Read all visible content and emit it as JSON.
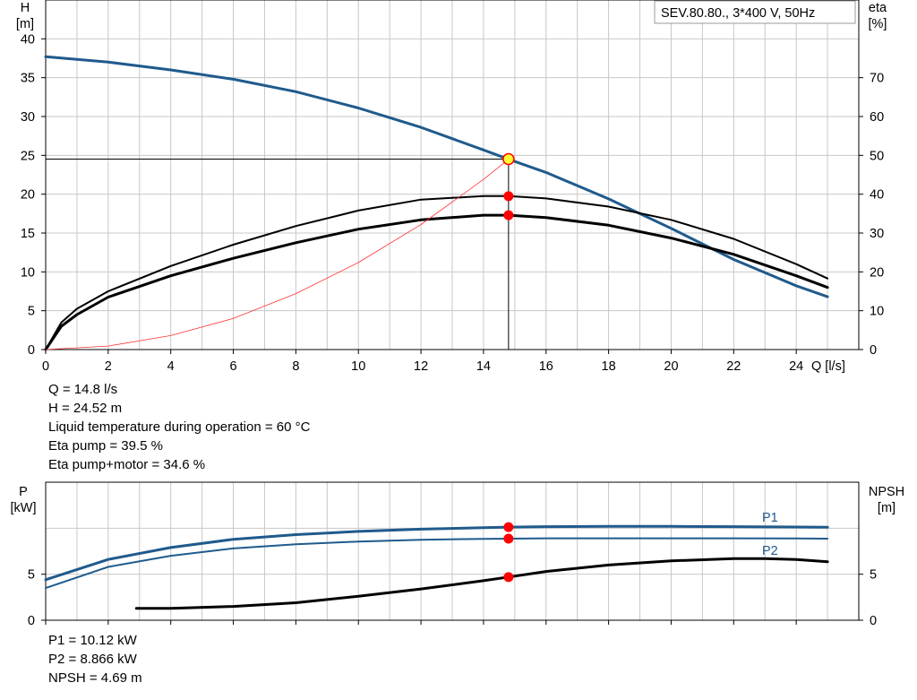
{
  "legend_box": "SEV.80.80., 3*400 V, 50Hz",
  "chart_data": [
    {
      "type": "line",
      "title": "",
      "xlabel": "Q [l/s]",
      "ylabel": "H\n[m]",
      "y2label": "eta\n[%]",
      "xlim": [
        0,
        26
      ],
      "ylim": [
        0,
        45
      ],
      "y2lim": [
        0,
        90
      ],
      "grid": true,
      "x_ticks": [
        0,
        2,
        4,
        6,
        8,
        10,
        12,
        14,
        16,
        18,
        20,
        22,
        24
      ],
      "y_ticks": [
        0,
        5,
        10,
        15,
        20,
        25,
        30,
        35,
        40
      ],
      "y2_ticks": [
        0,
        10,
        20,
        30,
        40,
        50,
        60,
        70
      ],
      "series": [
        {
          "id": "head",
          "color": "#1f5a8c",
          "axis": "left",
          "x": [
            0,
            2,
            4,
            6,
            8,
            10,
            12,
            14,
            14.8,
            16,
            18,
            20,
            22,
            24,
            25
          ],
          "values": [
            37.7,
            37,
            36,
            34.8,
            33.2,
            31.1,
            28.6,
            25.7,
            24.5,
            22.8,
            19.4,
            15.6,
            11.6,
            8.2,
            6.8
          ]
        },
        {
          "id": "eta-pump",
          "color": "#000000",
          "axis": "right",
          "x": [
            0,
            0.5,
            1,
            2,
            4,
            6,
            8,
            10,
            12,
            14,
            14.8,
            16,
            18,
            20,
            22,
            24,
            25
          ],
          "values": [
            0,
            7,
            10.5,
            15,
            21.5,
            27,
            31.8,
            35.8,
            38.6,
            39.5,
            39.5,
            38.9,
            36.8,
            33.4,
            28.5,
            22,
            18.3
          ]
        },
        {
          "id": "eta-pump-motor",
          "color": "#000000",
          "axis": "right",
          "x": [
            0,
            0.5,
            1,
            2,
            4,
            6,
            8,
            10,
            12,
            14,
            14.8,
            16,
            18,
            20,
            22,
            24,
            25
          ],
          "values": [
            0,
            6,
            9,
            13.5,
            19,
            23.5,
            27.5,
            31,
            33.4,
            34.6,
            34.6,
            34,
            32,
            28.7,
            24.5,
            19,
            16
          ]
        },
        {
          "id": "system-curve",
          "color": "#ff3333",
          "axis": "left",
          "x": [
            0,
            2,
            4,
            6,
            8,
            10,
            12,
            14,
            14.8
          ],
          "values": [
            0,
            0.45,
            1.8,
            4,
            7.2,
            11.2,
            16.1,
            21.9,
            24.5
          ]
        }
      ],
      "operating_point": {
        "x": 14.8,
        "y": 24.52
      },
      "eta_points": [
        39.5,
        34.6
      ]
    },
    {
      "type": "line",
      "title": "",
      "xlabel": "",
      "ylabel": "P\n[kW]",
      "y2label": "NPSH\n[m]",
      "xlim": [
        0,
        26
      ],
      "ylim": [
        0,
        15
      ],
      "y2lim": [
        0,
        15
      ],
      "grid": true,
      "y_ticks": [
        0,
        5
      ],
      "y2_ticks": [
        0,
        5
      ],
      "series": [
        {
          "id": "P1",
          "name": "P1",
          "color": "#1f5a8c",
          "axis": "left",
          "x": [
            0,
            2,
            4,
            6,
            8,
            10,
            12,
            14,
            14.8,
            16,
            18,
            20,
            22,
            24,
            25
          ],
          "values": [
            4.4,
            6.6,
            7.9,
            8.8,
            9.3,
            9.65,
            9.9,
            10.05,
            10.12,
            10.17,
            10.2,
            10.2,
            10.17,
            10.13,
            10.1
          ]
        },
        {
          "id": "P2",
          "name": "P2",
          "color": "#1f5a8c",
          "axis": "left",
          "x": [
            0,
            2,
            4,
            6,
            8,
            10,
            12,
            14,
            14.8,
            16,
            18,
            20,
            22,
            24,
            25
          ],
          "values": [
            3.5,
            5.8,
            7,
            7.8,
            8.25,
            8.55,
            8.75,
            8.84,
            8.866,
            8.9,
            8.9,
            8.9,
            8.9,
            8.88,
            8.86
          ]
        },
        {
          "id": "NPSH",
          "color": "#000000",
          "axis": "right",
          "x": [
            2.9,
            4,
            6,
            8,
            10,
            12,
            14,
            14.8,
            16,
            18,
            20,
            22,
            23,
            24,
            25
          ],
          "values": [
            1.3,
            1.3,
            1.5,
            1.9,
            2.6,
            3.4,
            4.3,
            4.69,
            5.3,
            6,
            6.45,
            6.7,
            6.7,
            6.6,
            6.35
          ]
        }
      ],
      "points": {
        "P1": 10.12,
        "P2": 8.866,
        "NPSH": 4.69
      }
    }
  ],
  "upper_readout": [
    "Q = 14.8 l/s",
    "H = 24.52 m",
    "Liquid temperature during operation = 60 °C",
    "Eta pump = 39.5 %",
    "Eta pump+motor = 34.6 %"
  ],
  "lower_readout": [
    "P1 = 10.12 kW",
    "P2 = 8.866 kW",
    "NPSH = 4.69 m"
  ]
}
